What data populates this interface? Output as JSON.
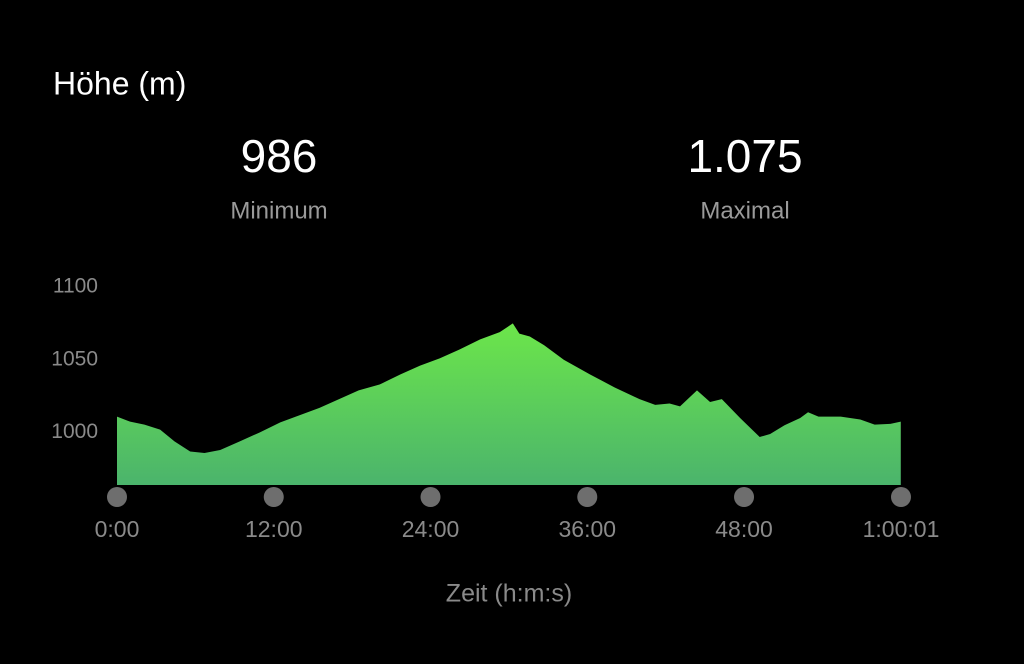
{
  "chart_data": {
    "type": "area",
    "title": "Höhe (m)",
    "x_label": "Zeit (h:m:s)",
    "x": [
      0,
      1,
      2.1,
      3.3,
      4.4,
      5.6,
      6.7,
      7.9,
      9.4,
      10.9,
      12.5,
      14,
      15.5,
      17,
      18.5,
      20.1,
      21.7,
      23.2,
      24.7,
      26.2,
      27.8,
      29.3,
      30.3,
      30.8,
      31.6,
      32.7,
      34.2,
      36.2,
      38.1,
      40,
      41.2,
      42.3,
      43.1,
      44.4,
      45.4,
      46.3,
      47.7,
      49.2,
      50,
      51.1,
      52.3,
      52.9,
      53.7,
      55.4,
      56.9,
      58,
      59.2,
      60
    ],
    "values": [
      1011,
      1007.5,
      1005.5,
      1002,
      994,
      987,
      986,
      988,
      994,
      1000,
      1007,
      1012,
      1017,
      1023,
      1029,
      1033,
      1040,
      1046,
      1051,
      1057,
      1064,
      1069,
      1075,
      1068,
      1066,
      1060,
      1050,
      1040,
      1031,
      1023,
      1019,
      1020,
      1018,
      1029,
      1021,
      1023,
      1010,
      997,
      999,
      1005,
      1010,
      1014,
      1011,
      1011,
      1009,
      1005.5,
      1006,
      1007.5
    ],
    "color": "#6ce64a",
    "xlim": [
      0,
      60.0167
    ],
    "ylim": [
      964,
      1100
    ],
    "xticks": [
      {
        "value": 0,
        "label": "0:00"
      },
      {
        "value": 12,
        "label": "12:00"
      },
      {
        "value": 24,
        "label": "24:00"
      },
      {
        "value": 36,
        "label": "36:00"
      },
      {
        "value": 48,
        "label": "48:00"
      },
      {
        "value": 60.0167,
        "label": "1:00:01"
      }
    ],
    "yticks": [
      1000,
      1050,
      1100
    ]
  },
  "stats": [
    {
      "value": "986",
      "label": "Minimum"
    },
    {
      "value": "1.075",
      "label": "Maximal"
    }
  ]
}
